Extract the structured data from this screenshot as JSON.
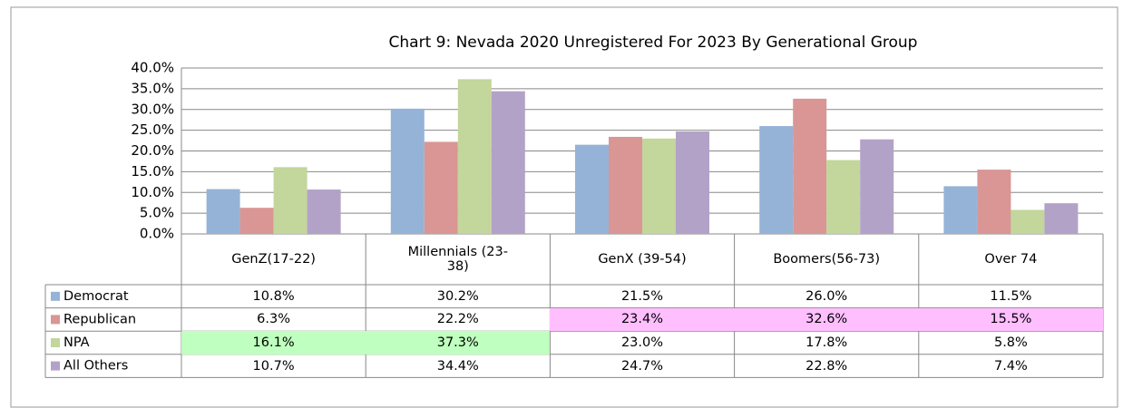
{
  "chart_data": {
    "type": "bar",
    "title": "Chart 9: Nevada 2020 Unregistered For 2023 By Generational Group",
    "categories": [
      "GenZ(17-22)",
      "Millennials (23-38)",
      "GenX (39-54)",
      "Boomers(56-73)",
      "Over 74"
    ],
    "series": [
      {
        "name": "Democrat",
        "color": "#95b3d7",
        "values": [
          10.8,
          30.2,
          21.5,
          26.0,
          11.5
        ],
        "value_labels": [
          "10.8%",
          "30.2%",
          "21.5%",
          "26.0%",
          "11.5%"
        ],
        "cell_colors": [
          null,
          null,
          null,
          null,
          null
        ]
      },
      {
        "name": "Republican",
        "color": "#d99694",
        "values": [
          6.3,
          22.2,
          23.4,
          32.6,
          15.5
        ],
        "value_labels": [
          "6.3%",
          "22.2%",
          "23.4%",
          "32.6%",
          "15.5%"
        ],
        "cell_colors": [
          null,
          null,
          "#ffbfff",
          "#ffbfff",
          "#ffbfff"
        ]
      },
      {
        "name": "NPA",
        "color": "#c3d69b",
        "values": [
          16.1,
          37.3,
          23.0,
          17.8,
          5.8
        ],
        "value_labels": [
          "16.1%",
          "37.3%",
          "23.0%",
          "17.8%",
          "5.8%"
        ],
        "cell_colors": [
          "#bfffbf",
          "#bfffbf",
          null,
          null,
          null
        ]
      },
      {
        "name": "All Others",
        "color": "#b3a2c7",
        "values": [
          10.7,
          34.4,
          24.7,
          22.8,
          7.4
        ],
        "value_labels": [
          "10.7%",
          "34.4%",
          "24.7%",
          "22.8%",
          "7.4%"
        ],
        "cell_colors": [
          null,
          null,
          null,
          null,
          null
        ]
      }
    ],
    "ylim": [
      0,
      40
    ],
    "yticks": [
      {
        "value": 0,
        "label": "0.0%"
      },
      {
        "value": 5,
        "label": "5.0%"
      },
      {
        "value": 10,
        "label": "10.0%"
      },
      {
        "value": 15,
        "label": "15.0%"
      },
      {
        "value": 20,
        "label": "20.0%"
      },
      {
        "value": 25,
        "label": "25.0%"
      },
      {
        "value": 30,
        "label": "30.0%"
      },
      {
        "value": 35,
        "label": "35.0%"
      },
      {
        "value": 40,
        "label": "40.0%"
      }
    ],
    "grid": true
  }
}
